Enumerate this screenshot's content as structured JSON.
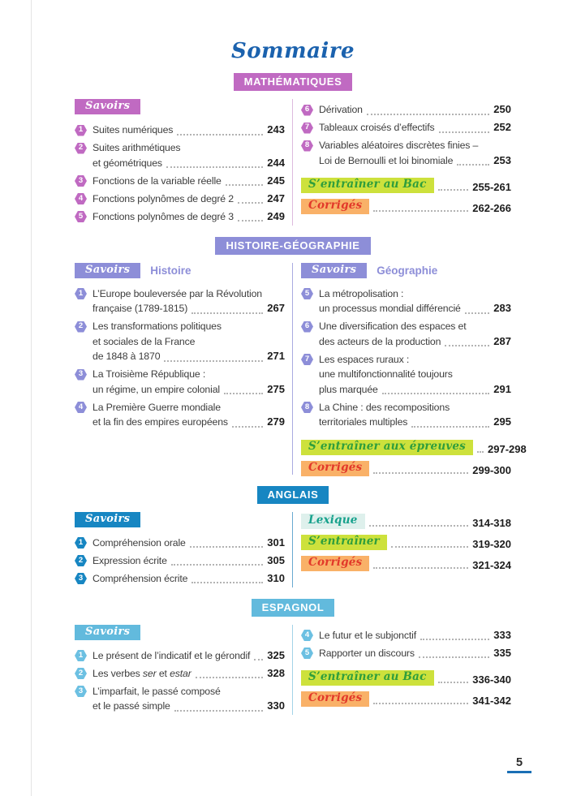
{
  "page": {
    "title": "Sommaire",
    "page_number": "5"
  },
  "colors": {
    "title_blue": "#1b62ae",
    "math_purple": "#c06ac2",
    "histgeo_periwinkle": "#8d8ed8",
    "anglais_blue": "#1786c2",
    "espagnol_sky": "#62badd",
    "entrainer_text": "#2f9e3c",
    "entrainer_bg": "#cde13c",
    "corriges_text": "#e2392a",
    "corriges_bg": "#f9b168",
    "lexique_text": "#16a18c",
    "lexique_bg": "#def0ec",
    "body_text": "#3c3c3c",
    "footer_underline": "#1a6fb5"
  },
  "s": {
    "math": {
      "header": "MATHÉMATIQUES",
      "savoirs": "Savoirs",
      "left": [
        {
          "num": "1",
          "lines": [
            "Suites numériques"
          ],
          "page": "243"
        },
        {
          "num": "2",
          "lines": [
            "Suites arithmétiques",
            "et géométriques"
          ],
          "page": "244"
        },
        {
          "num": "3",
          "lines": [
            "Fonctions de la variable réelle"
          ],
          "page": "245"
        },
        {
          "num": "4",
          "lines": [
            "Fonctions polynômes de degré 2"
          ],
          "page": "247"
        },
        {
          "num": "5",
          "lines": [
            "Fonctions polynômes de degré 3"
          ],
          "page": "249"
        }
      ],
      "right": [
        {
          "num": "6",
          "lines": [
            "Dérivation"
          ],
          "page": "250"
        },
        {
          "num": "7",
          "lines": [
            "Tableaux croisés d’effectifs"
          ],
          "page": "252"
        },
        {
          "num": "8",
          "lines": [
            "Variables aléatoires discrètes finies –",
            "Loi de Bernoulli et loi binomiale"
          ],
          "page": "253"
        }
      ],
      "entrainer": {
        "label": "S’entraîner au Bac",
        "pages": "255-261"
      },
      "corriges": {
        "label": "Corrigés",
        "pages": "262-266"
      }
    },
    "histgeo": {
      "header": "HISTOIRE-GÉOGRAPHIE",
      "left_savoirs": "Savoirs",
      "left_title": "Histoire",
      "right_savoirs": "Savoirs",
      "right_title": "Géographie",
      "hist": [
        {
          "num": "1",
          "lines": [
            "L’Europe bouleversée par la Révolution",
            "française (1789-1815)"
          ],
          "page": "267"
        },
        {
          "num": "2",
          "lines": [
            "Les transformations politiques",
            "et sociales de la France",
            "de 1848 à 1870"
          ],
          "page": "271"
        },
        {
          "num": "3",
          "lines": [
            "La Troisième République :",
            "un régime, un empire colonial"
          ],
          "page": "275"
        },
        {
          "num": "4",
          "lines": [
            "La Première Guerre mondiale",
            "et la fin des empires européens"
          ],
          "page": "279"
        }
      ],
      "geo": [
        {
          "num": "5",
          "lines": [
            "La métropolisation :",
            "un processus mondial différencié"
          ],
          "page": "283"
        },
        {
          "num": "6",
          "lines": [
            "Une diversification des espaces et",
            "des acteurs de la production"
          ],
          "page": "287"
        },
        {
          "num": "7",
          "lines": [
            "Les espaces ruraux :",
            "une multifonctionnalité toujours",
            "plus marquée"
          ],
          "page": "291"
        },
        {
          "num": "8",
          "lines": [
            "La Chine : des recompositions",
            "territoriales multiples"
          ],
          "page": "295"
        }
      ],
      "entrainer": {
        "label": "S’entraîner aux épreuves",
        "pages": "297-298"
      },
      "corriges": {
        "label": "Corrigés",
        "pages": "299-300"
      }
    },
    "anglais": {
      "header": "ANGLAIS",
      "savoirs": "Savoirs",
      "left": [
        {
          "num": "1",
          "lines": [
            "Compréhension orale"
          ],
          "page": "301"
        },
        {
          "num": "2",
          "lines": [
            "Expression écrite"
          ],
          "page": "305"
        },
        {
          "num": "3",
          "lines": [
            "Compréhension écrite"
          ],
          "page": "310"
        }
      ],
      "lexique": {
        "label": "Lexique",
        "pages": "314-318"
      },
      "entrainer": {
        "label": "S’entraîner",
        "pages": "319-320"
      },
      "corriges": {
        "label": "Corrigés",
        "pages": "321-324"
      }
    },
    "espagnol": {
      "header": "ESPAGNOL",
      "savoirs": "Savoirs",
      "left1": {
        "num": "1",
        "lines": [
          "Le présent de l’indicatif et le gérondif"
        ],
        "page": "325"
      },
      "left2": {
        "num": "2",
        "parts": {
          "pre": "Les verbes ",
          "it1": "ser",
          "mid": " et ",
          "it2": "estar"
        },
        "page": "328"
      },
      "left3": {
        "num": "3",
        "lines": [
          "L’imparfait, le passé composé",
          "et le passé simple"
        ],
        "page": "330"
      },
      "right": [
        {
          "num": "4",
          "lines": [
            "Le futur et le subjonctif"
          ],
          "page": "333"
        },
        {
          "num": "5",
          "lines": [
            "Rapporter un discours"
          ],
          "page": "335"
        }
      ],
      "entrainer": {
        "label": "S’entraîner au Bac",
        "pages": "336-340"
      },
      "corriges": {
        "label": "Corrigés",
        "pages": "341-342"
      }
    }
  }
}
